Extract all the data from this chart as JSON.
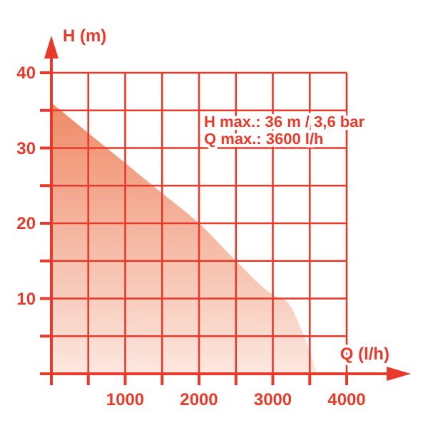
{
  "chart_data": {
    "type": "area",
    "xlabel": "Q (l/h)",
    "ylabel": "H (m)",
    "annotations": [
      "H max.: 36 m / 3,6 bar",
      "Q max.: 3600 l/h"
    ],
    "x": [
      0,
      500,
      1000,
      1500,
      2000,
      2500,
      3000,
      3200,
      3400,
      3500,
      3600
    ],
    "series": [
      {
        "color": "#ef8a66",
        "values": [
          36,
          32,
          28,
          24,
          20,
          15,
          10.5,
          9.5,
          5.5,
          3,
          0
        ]
      }
    ],
    "xlim": [
      0,
      4000
    ],
    "ylim": [
      0,
      40
    ],
    "xticks": [
      {
        "value": 0,
        "label": null
      },
      {
        "value": 500,
        "label": null
      },
      1000,
      {
        "value": 1500,
        "label": null
      },
      2000,
      {
        "value": 2500,
        "label": null
      },
      3000,
      {
        "value": 3500,
        "label": null
      },
      4000
    ],
    "yticks": [
      {
        "value": 0,
        "label": null
      },
      {
        "value": 5,
        "label": null
      },
      10,
      {
        "value": 15,
        "label": null
      },
      20,
      {
        "value": 25,
        "label": null
      },
      30,
      {
        "value": 35,
        "label": null
      },
      40
    ],
    "grid": true
  }
}
